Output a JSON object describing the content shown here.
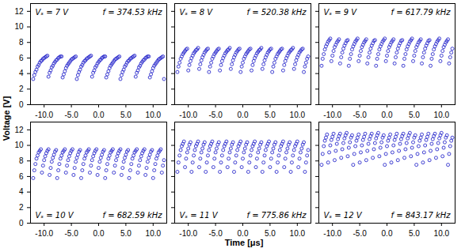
{
  "chart_data": {
    "type": "scatter",
    "x_label": "Time [μs]",
    "y_label": "Voltage [V]",
    "xlim": [
      -12.5,
      12.5
    ],
    "xticks": [
      {
        "value": -10,
        "label": "-10.0"
      },
      {
        "value": -5,
        "label": "-5.0"
      },
      {
        "value": 0,
        "label": "0.0"
      },
      {
        "value": 5,
        "label": "5.0"
      },
      {
        "value": 10,
        "label": "10.0"
      }
    ],
    "ylim": [
      0,
      13
    ],
    "yticks": [
      0,
      2,
      4,
      6,
      8,
      10,
      12
    ],
    "marker": "circle",
    "color": "#2b2bcc",
    "x": [
      -12,
      -11.8,
      -11.6,
      -11.4,
      -11.2,
      -11,
      -10.8,
      -10.6,
      -10.4,
      -10.2,
      -10,
      -9.8,
      -9.6,
      -9.4,
      -9.2,
      -9,
      -8.8,
      -8.6,
      -8.4,
      -8.2,
      -8,
      -7.8,
      -7.6,
      -7.4,
      -7.2,
      -7,
      -6.8,
      -6.6,
      -6.4,
      -6.2,
      -6,
      -5.8,
      -5.6,
      -5.4,
      -5.2,
      -5,
      -4.8,
      -4.6,
      -4.4,
      -4.2,
      -4,
      -3.8,
      -3.6,
      -3.4,
      -3.2,
      -3,
      -2.8,
      -2.6,
      -2.4,
      -2.2,
      -2,
      -1.8,
      -1.6,
      -1.4,
      -1.2,
      -1,
      -0.8,
      -0.6,
      -0.4,
      -0.2,
      0,
      0.2,
      0.4,
      0.6,
      0.8,
      1,
      1.2,
      1.4,
      1.6,
      1.8,
      2,
      2.2,
      2.4,
      2.6,
      2.8,
      3,
      3.2,
      3.4,
      3.6,
      3.8,
      4,
      4.2,
      4.4,
      4.6,
      4.8,
      5,
      5.2,
      5.4,
      5.6,
      5.8,
      6,
      6.2,
      6.4,
      6.6,
      6.8,
      7,
      7.2,
      7.4,
      7.6,
      7.8,
      8,
      8.2,
      8.4,
      8.6,
      8.8,
      9,
      9.2,
      9.4,
      9.6,
      9.8,
      10,
      10.2,
      10.4,
      10.6,
      10.8,
      11,
      11.2,
      11.4,
      11.6,
      11.8,
      12
    ],
    "panels": [
      {
        "annotations": [
          "Vₛ = 7 V",
          "f = 374.53 kHz"
        ],
        "values": [
          3.3,
          3.8,
          4.2,
          4.5,
          4.9,
          5.1,
          5.4,
          5.6,
          5.7,
          5.9,
          6.0,
          6.1,
          6.2,
          6.3,
          3.6,
          4.1,
          4.4,
          4.8,
          5.0,
          5.3,
          5.5,
          5.7,
          5.8,
          6.0,
          6.1,
          6.2,
          6.2,
          3.5,
          3.9,
          4.3,
          4.7,
          5.0,
          5.2,
          5.4,
          5.6,
          5.8,
          5.9,
          6.0,
          6.1,
          6.2,
          3.3,
          3.8,
          4.2,
          4.5,
          4.9,
          5.1,
          5.4,
          5.6,
          5.7,
          5.9,
          6.0,
          6.1,
          6.2,
          6.3,
          3.6,
          4.1,
          4.4,
          4.8,
          5.0,
          5.3,
          5.5,
          5.7,
          5.8,
          6.0,
          6.1,
          6.2,
          6.2,
          3.5,
          3.9,
          4.3,
          4.7,
          5.0,
          5.2,
          5.4,
          5.6,
          5.8,
          5.9,
          6.0,
          6.1,
          6.2,
          3.3,
          3.8,
          4.2,
          4.5,
          4.9,
          5.1,
          5.4,
          5.6,
          5.7,
          5.9,
          6.0,
          6.1,
          6.2,
          6.3,
          3.6,
          4.1,
          4.4,
          4.8,
          5.0,
          5.3,
          5.5,
          5.7,
          5.8,
          6.0,
          6.1,
          6.2,
          6.2,
          3.5,
          3.9,
          4.3,
          4.7,
          5.0,
          5.2,
          5.4,
          5.6,
          5.8,
          5.9,
          6.0,
          6.1,
          6.2,
          3.3
        ]
      },
      {
        "annotations": [
          "Vₛ = 8 V",
          "f = 520.38 kHz"
        ],
        "tick_labels": "x",
        "values": [
          4.2,
          4.9,
          5.4,
          5.9,
          6.2,
          6.5,
          6.7,
          6.9,
          7.1,
          7.2,
          4.4,
          5.1,
          5.6,
          6.0,
          6.3,
          6.6,
          6.8,
          7.0,
          7.1,
          7.3,
          4.6,
          5.2,
          5.7,
          6.1,
          6.4,
          6.7,
          6.9,
          7.1,
          7.2,
          4.2,
          4.9,
          5.4,
          5.9,
          6.2,
          6.5,
          6.7,
          6.9,
          7.1,
          7.2,
          4.4,
          5.1,
          5.6,
          6.0,
          6.3,
          6.6,
          6.8,
          7.0,
          7.1,
          7.3,
          4.6,
          5.2,
          5.7,
          6.1,
          6.4,
          6.7,
          6.9,
          7.1,
          7.2,
          4.2,
          4.9,
          5.4,
          5.9,
          6.2,
          6.5,
          6.7,
          6.9,
          7.1,
          7.2,
          4.4,
          5.1,
          5.6,
          6.0,
          6.3,
          6.6,
          6.8,
          7.0,
          7.1,
          7.3,
          4.6,
          5.2,
          5.7,
          6.1,
          6.4,
          6.7,
          6.9,
          7.1,
          7.2,
          4.2,
          4.9,
          5.4,
          5.9,
          6.2,
          6.5,
          6.7,
          6.9,
          7.1,
          7.2,
          4.4,
          5.1,
          5.6,
          6.0,
          6.3,
          6.6,
          6.8,
          7.0,
          7.1,
          7.3,
          4.6,
          5.2,
          5.7,
          6.1,
          6.4,
          6.7,
          6.9,
          7.1,
          7.2,
          4.2,
          4.9,
          5.4,
          5.9,
          6.2
        ]
      },
      {
        "annotations": [
          "Vₛ = 9 V",
          "f = 617.79 kHz"
        ],
        "tick_labels": "x",
        "values": [
          5.0,
          5.9,
          6.5,
          7.1,
          7.5,
          7.8,
          8.1,
          8.3,
          8.5,
          5.6,
          6.3,
          6.9,
          7.4,
          7.7,
          8.0,
          8.2,
          8.4,
          5.3,
          6.1,
          6.7,
          7.2,
          7.6,
          7.9,
          8.2,
          8.3,
          5.0,
          5.9,
          6.5,
          7.1,
          7.5,
          7.8,
          8.1,
          8.3,
          8.5,
          5.6,
          6.3,
          6.9,
          7.4,
          7.7,
          8.0,
          8.2,
          8.4,
          5.3,
          6.1,
          6.7,
          7.2,
          7.6,
          7.9,
          8.2,
          8.3,
          5.0,
          5.9,
          6.5,
          7.1,
          7.5,
          7.8,
          8.1,
          8.3,
          8.5,
          5.6,
          6.3,
          6.9,
          7.4,
          7.7,
          8.0,
          8.2,
          8.4,
          5.3,
          6.1,
          6.7,
          7.2,
          7.6,
          7.9,
          8.2,
          8.3,
          5.0,
          5.9,
          6.5,
          7.1,
          7.5,
          7.8,
          8.1,
          8.3,
          8.5,
          5.6,
          6.3,
          6.9,
          7.4,
          7.7,
          8.0,
          8.2,
          8.4,
          5.3,
          6.1,
          6.7,
          7.2,
          7.6,
          7.9,
          8.2,
          8.3,
          5.0,
          5.9,
          6.5,
          7.1,
          7.5,
          7.8,
          8.1,
          8.3,
          8.5,
          5.6,
          6.3,
          6.9,
          7.4,
          7.7,
          8.0,
          8.2,
          8.4,
          5.3,
          6.1,
          6.7,
          7.2
        ]
      },
      {
        "annotations": [
          "Vₛ = 10 V",
          "f = 682.59 kHz"
        ],
        "values": [
          5.8,
          6.8,
          7.6,
          8.3,
          8.7,
          9.1,
          9.3,
          9.5,
          6.5,
          7.4,
          8.1,
          8.6,
          9.0,
          9.3,
          9.5,
          6.2,
          7.1,
          7.9,
          8.4,
          8.8,
          9.2,
          9.4,
          5.8,
          6.8,
          7.6,
          8.3,
          8.7,
          9.1,
          9.3,
          9.5,
          6.5,
          7.4,
          8.1,
          8.6,
          9.0,
          9.3,
          9.5,
          6.2,
          7.1,
          7.9,
          8.4,
          8.8,
          9.2,
          9.4,
          5.8,
          6.8,
          7.6,
          8.3,
          8.7,
          9.1,
          9.3,
          9.5,
          6.5,
          7.4,
          8.1,
          8.6,
          9.0,
          9.3,
          9.5,
          6.2,
          7.1,
          7.9,
          8.4,
          8.8,
          9.2,
          9.4,
          5.8,
          6.8,
          7.6,
          8.3,
          8.7,
          9.1,
          9.3,
          9.5,
          6.5,
          7.4,
          8.1,
          8.6,
          9.0,
          9.3,
          9.5,
          6.2,
          7.1,
          7.9,
          8.4,
          8.8,
          9.2,
          9.4,
          5.8,
          6.8,
          7.6,
          8.3,
          8.7,
          9.1,
          9.3,
          9.5,
          6.5,
          7.4,
          8.1,
          8.6,
          9.0,
          9.3,
          9.5,
          6.2,
          7.1,
          7.9,
          8.4,
          8.8,
          9.2,
          9.4,
          5.8,
          6.8,
          7.6,
          8.3,
          8.7,
          9.1,
          9.3,
          9.5,
          6.5,
          7.4,
          8.1
        ]
      },
      {
        "annotations": [
          "Vₛ = 11 V",
          "f = 775.86 kHz"
        ],
        "tick_labels": "x",
        "values": [
          6.6,
          7.8,
          8.7,
          9.4,
          9.9,
          10.2,
          10.5,
          7.2,
          8.3,
          9.1,
          9.6,
          10.1,
          10.4,
          6.6,
          7.8,
          8.7,
          9.4,
          9.9,
          10.2,
          10.5,
          7.2,
          8.3,
          9.1,
          9.6,
          10.1,
          10.4,
          6.6,
          7.8,
          8.7,
          9.4,
          9.9,
          10.2,
          10.5,
          7.2,
          8.3,
          9.1,
          9.6,
          10.1,
          10.4,
          6.6,
          7.8,
          8.7,
          9.4,
          9.9,
          10.2,
          10.5,
          7.2,
          8.3,
          9.1,
          9.6,
          10.1,
          10.4,
          6.6,
          7.8,
          8.7,
          9.4,
          9.9,
          10.2,
          10.5,
          7.2,
          8.3,
          9.1,
          9.6,
          10.1,
          10.4,
          6.6,
          7.8,
          8.7,
          9.4,
          9.9,
          10.2,
          10.5,
          7.2,
          8.3,
          9.1,
          9.6,
          10.1,
          10.4,
          6.6,
          7.8,
          8.7,
          9.4,
          9.9,
          10.2,
          10.5,
          7.2,
          8.3,
          9.1,
          9.6,
          10.1,
          10.4,
          6.6,
          7.8,
          8.7,
          9.4,
          9.9,
          10.2,
          10.5,
          7.2,
          8.3,
          9.1,
          9.6,
          10.1,
          10.4,
          6.6,
          7.8,
          8.7,
          9.4,
          9.9,
          10.2,
          10.5,
          7.2,
          8.3,
          9.1,
          9.6,
          10.1,
          10.4,
          6.6,
          7.8,
          8.7,
          9.4
        ]
      },
      {
        "annotations": [
          "Vₛ = 12 V",
          "f = 843.17 kHz"
        ],
        "tick_labels": "x",
        "values": [
          7.5,
          8.9,
          9.9,
          10.6,
          11.0,
          11.4,
          7.8,
          9.1,
          10.0,
          10.7,
          11.1,
          11.5,
          8.1,
          9.3,
          10.2,
          10.8,
          11.2,
          11.5,
          8.4,
          9.5,
          10.3,
          10.9,
          11.3,
          11.6,
          8.6,
          9.7,
          10.4,
          11.0,
          11.3,
          7.5,
          8.9,
          9.9,
          10.6,
          11.0,
          11.4,
          7.8,
          9.1,
          10.0,
          10.7,
          11.1,
          11.5,
          8.1,
          9.3,
          10.2,
          10.8,
          11.2,
          11.5,
          8.4,
          9.5,
          10.3,
          10.9,
          11.3,
          11.6,
          8.6,
          9.7,
          10.4,
          11.0,
          11.3,
          7.5,
          8.9,
          9.9,
          10.6,
          11.0,
          11.4,
          7.8,
          9.1,
          10.0,
          10.7,
          11.1,
          11.5,
          8.1,
          9.3,
          10.2,
          10.8,
          11.2,
          11.5,
          8.4,
          9.5,
          10.3,
          10.9,
          11.3,
          11.6,
          8.6,
          9.7,
          10.4,
          11.0,
          11.3,
          7.5,
          8.9,
          9.9,
          10.6,
          11.0,
          11.4,
          7.8,
          9.1,
          10.0,
          10.7,
          11.1,
          11.5,
          8.1,
          9.3,
          10.2,
          10.8,
          11.2,
          11.5,
          8.4,
          9.5,
          10.3,
          10.9,
          11.3,
          11.6,
          8.6,
          9.7,
          10.4,
          11.0,
          11.3,
          7.5,
          8.9,
          9.9,
          10.6,
          11.0
        ]
      }
    ]
  }
}
